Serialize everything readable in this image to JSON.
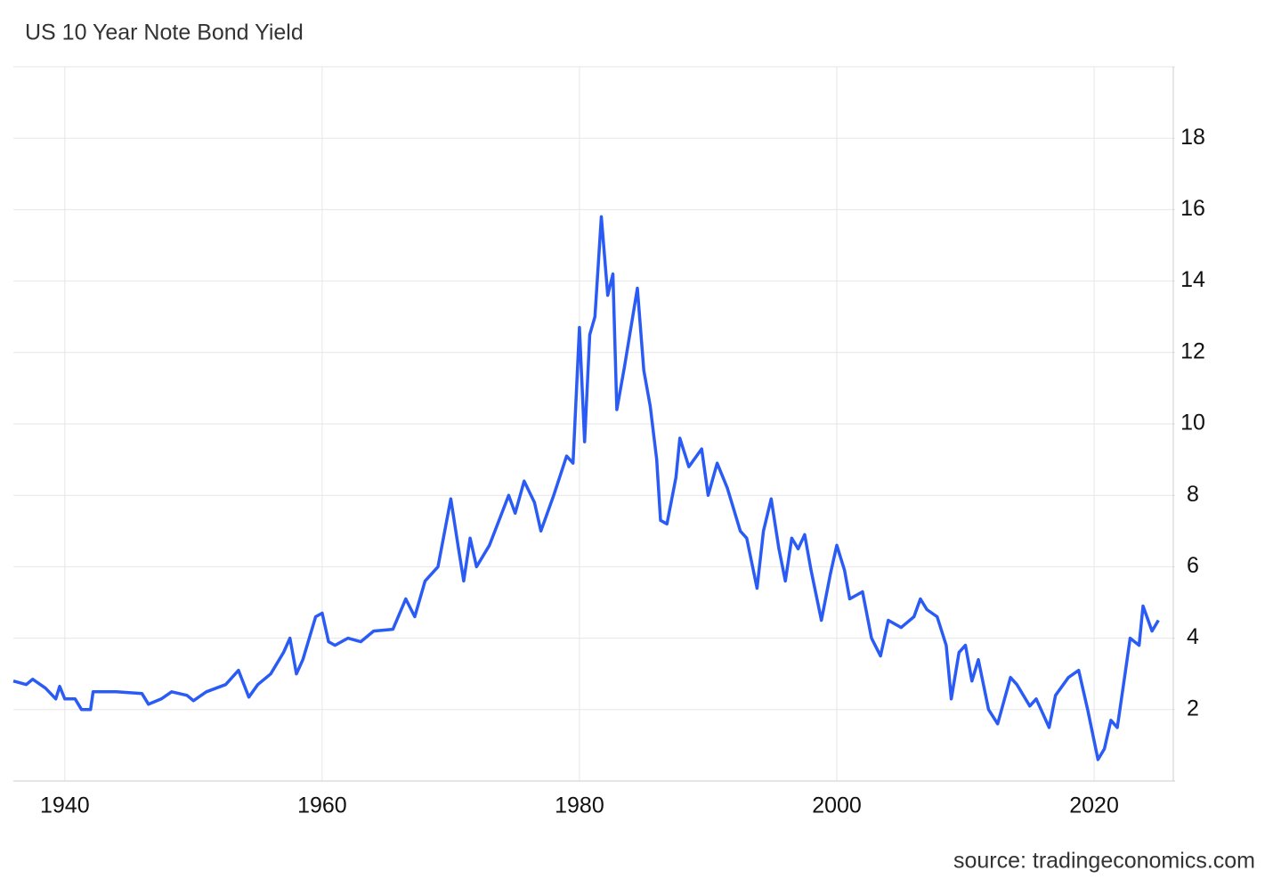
{
  "chart_data": {
    "type": "line",
    "title": "US 10 Year Note Bond Yield",
    "source": "source: tradingeconomics.com",
    "x": [
      1936.0,
      1937.0,
      1937.5,
      1938.5,
      1939.3,
      1939.6,
      1940.0,
      1940.8,
      1941.3,
      1942.0,
      1942.2,
      1944.0,
      1946.0,
      1946.5,
      1947.5,
      1948.3,
      1949.5,
      1950.0,
      1951.0,
      1952.5,
      1953.5,
      1954.3,
      1955.0,
      1956.0,
      1957.0,
      1957.5,
      1958.0,
      1958.5,
      1959.5,
      1960.0,
      1960.5,
      1961.0,
      1962.0,
      1963.0,
      1964.0,
      1965.5,
      1966.5,
      1967.2,
      1968.0,
      1969.0,
      1970.0,
      1970.6,
      1971.0,
      1971.5,
      1972.0,
      1973.0,
      1974.5,
      1975.0,
      1975.7,
      1976.5,
      1977.0,
      1978.0,
      1979.0,
      1979.5,
      1980.0,
      1980.4,
      1980.8,
      1981.2,
      1981.7,
      1982.2,
      1982.6,
      1982.9,
      1983.5,
      1984.5,
      1985.0,
      1985.5,
      1986.0,
      1986.3,
      1986.8,
      1987.5,
      1987.8,
      1988.5,
      1989.5,
      1990.0,
      1990.7,
      1991.5,
      1992.5,
      1993.0,
      1993.8,
      1994.3,
      1994.9,
      1995.5,
      1996.0,
      1996.5,
      1997.0,
      1997.5,
      1998.0,
      1998.8,
      1999.5,
      2000.0,
      2000.6,
      2001.0,
      2002.0,
      2002.7,
      2003.4,
      2004.0,
      2005.0,
      2006.0,
      2006.5,
      2007.0,
      2007.8,
      2008.5,
      2008.9,
      2009.5,
      2010.0,
      2010.5,
      2011.0,
      2011.8,
      2012.5,
      2013.5,
      2014.0,
      2015.0,
      2015.5,
      2016.5,
      2017.0,
      2018.0,
      2018.8,
      2019.5,
      2020.3,
      2020.8,
      2021.3,
      2021.8,
      2022.4,
      2022.8,
      2023.5,
      2023.8,
      2024.5,
      2025.0
    ],
    "series": [
      {
        "name": "US 10Y",
        "color": "#2a5cf5",
        "values": [
          2.8,
          2.7,
          2.85,
          2.6,
          2.3,
          2.65,
          2.3,
          2.3,
          2.0,
          2.0,
          2.5,
          2.5,
          2.45,
          2.15,
          2.3,
          2.5,
          2.4,
          2.25,
          2.5,
          2.7,
          3.1,
          2.35,
          2.7,
          3.0,
          3.6,
          4.0,
          3.0,
          3.4,
          4.6,
          4.7,
          3.9,
          3.8,
          4.0,
          3.9,
          4.2,
          4.25,
          5.1,
          4.6,
          5.6,
          6.0,
          7.9,
          6.5,
          5.6,
          6.8,
          6.0,
          6.6,
          8.0,
          7.5,
          8.4,
          7.8,
          7.0,
          8.0,
          9.1,
          8.9,
          12.7,
          9.5,
          12.5,
          13.0,
          15.8,
          13.6,
          14.2,
          10.4,
          11.6,
          13.8,
          11.5,
          10.5,
          9.0,
          7.3,
          7.2,
          8.5,
          9.6,
          8.8,
          9.3,
          8.0,
          8.9,
          8.2,
          7.0,
          6.8,
          5.4,
          7.0,
          7.9,
          6.5,
          5.6,
          6.8,
          6.5,
          6.9,
          5.9,
          4.5,
          5.8,
          6.6,
          5.9,
          5.1,
          5.3,
          4.0,
          3.5,
          4.5,
          4.3,
          4.6,
          5.1,
          4.8,
          4.6,
          3.8,
          2.3,
          3.6,
          3.8,
          2.8,
          3.4,
          2.0,
          1.6,
          2.9,
          2.7,
          2.1,
          2.3,
          1.5,
          2.4,
          2.9,
          3.1,
          2.0,
          0.6,
          0.9,
          1.7,
          1.5,
          3.0,
          4.0,
          3.8,
          4.9,
          4.2,
          4.5
        ]
      }
    ],
    "xlim": [
      1936.0,
      2025.6
    ],
    "ylim": [
      0,
      20
    ],
    "xticks": [
      1940,
      1960,
      1980,
      2000,
      2020
    ],
    "yticks": [
      2,
      4,
      6,
      8,
      10,
      12,
      14,
      16,
      18
    ],
    "grid": true
  }
}
